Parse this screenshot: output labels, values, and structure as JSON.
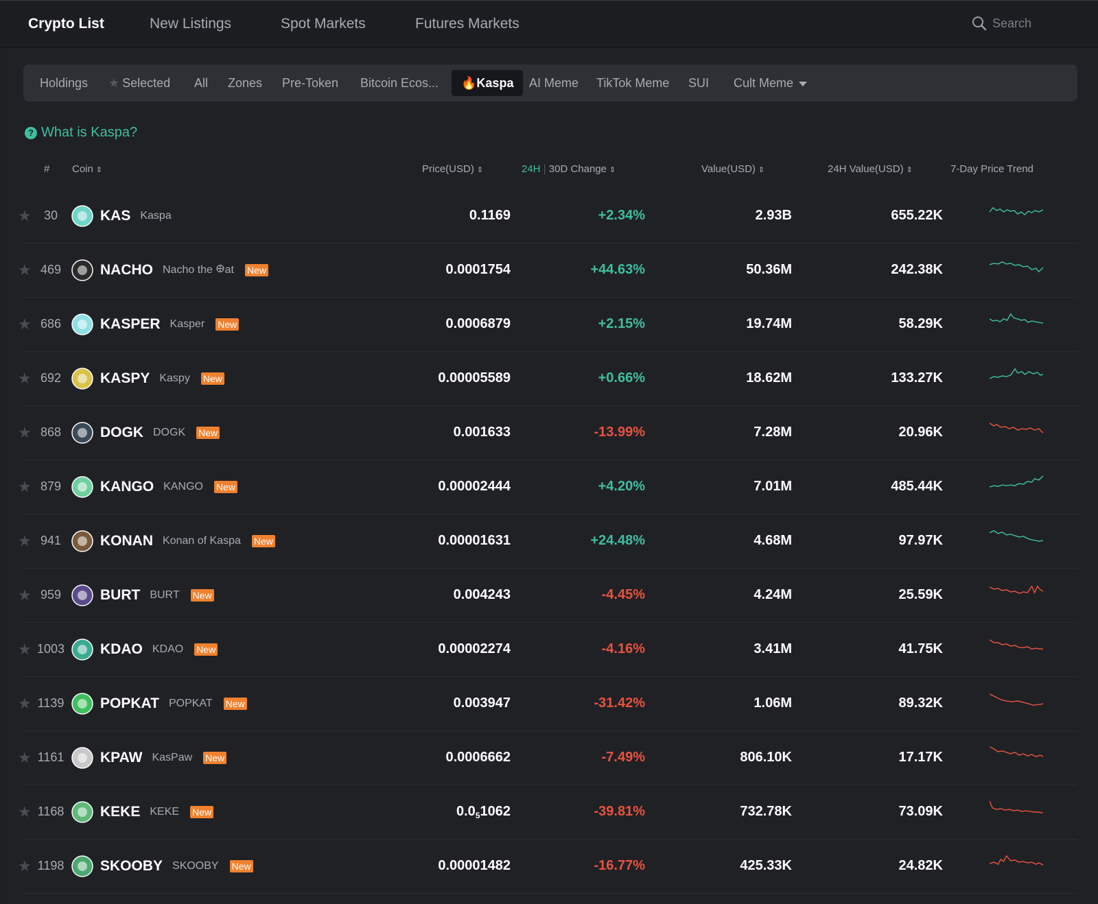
{
  "colors": {
    "up": "#3fbfa0",
    "down": "#e8533f",
    "badge": "#f0812f"
  },
  "top_tabs": [
    {
      "label": "Crypto List",
      "active": true
    },
    {
      "label": "New Listings",
      "active": false
    },
    {
      "label": "Spot Markets",
      "active": false
    },
    {
      "label": "Futures Markets",
      "active": false
    }
  ],
  "search": {
    "placeholder": "Search",
    "icon": "search-icon"
  },
  "filters": [
    {
      "label": "Holdings"
    },
    {
      "label": "Selected",
      "icon": "star-icon"
    },
    {
      "label": "All"
    },
    {
      "label": "Zones"
    },
    {
      "label": "Pre-Token"
    },
    {
      "label": "Bitcoin Ecos..."
    },
    {
      "label": "Kaspa",
      "icon": "fire-icon",
      "active": true
    },
    {
      "label": "AI Meme"
    },
    {
      "label": "TikTok Meme"
    },
    {
      "label": "SUI"
    },
    {
      "label": "Cult Meme",
      "icon": "chevron-down-icon"
    }
  ],
  "info_link": "What is Kaspa?",
  "columns": {
    "rank": "#",
    "coin": "Coin",
    "price": "Price(USD)",
    "change_24h": "24H",
    "change_sep": "|",
    "change_30d": "30D",
    "change_label": "Change",
    "value": "Value(USD)",
    "value_24h": "24H Value(USD)",
    "trend": "7-Day Price Trend"
  },
  "rows": [
    {
      "rank": "30",
      "symbol": "KAS",
      "name": "Kaspa",
      "new": "",
      "price": "0.1169",
      "change": "+2.34%",
      "dir": "up",
      "value": "2.93B",
      "value24": "655.22K"
    },
    {
      "rank": "469",
      "symbol": "NACHO",
      "name": "Nacho the 𐃏at",
      "new": "New",
      "price": "0.0001754",
      "change": "+44.63%",
      "dir": "up",
      "value": "50.36M",
      "value24": "242.38K"
    },
    {
      "rank": "686",
      "symbol": "KASPER",
      "name": "Kasper",
      "new": "New",
      "price": "0.0006879",
      "change": "+2.15%",
      "dir": "up",
      "value": "19.74M",
      "value24": "58.29K"
    },
    {
      "rank": "692",
      "symbol": "KASPY",
      "name": "Kaspy",
      "new": "New",
      "price": "0.00005589",
      "change": "+0.66%",
      "dir": "up",
      "value": "18.62M",
      "value24": "133.27K"
    },
    {
      "rank": "868",
      "symbol": "DOGK",
      "name": "DOGK",
      "new": "New",
      "price": "0.001633",
      "change": "-13.99%",
      "dir": "down",
      "value": "7.28M",
      "value24": "20.96K"
    },
    {
      "rank": "879",
      "symbol": "KANGO",
      "name": "KANGO",
      "new": "New",
      "price": "0.00002444",
      "change": "+4.20%",
      "dir": "up",
      "value": "7.01M",
      "value24": "485.44K"
    },
    {
      "rank": "941",
      "symbol": "KONAN",
      "name": "Konan of Kaspa",
      "new": "New",
      "price": "0.00001631",
      "change": "+24.48%",
      "dir": "up",
      "value": "4.68M",
      "value24": "97.97K"
    },
    {
      "rank": "959",
      "symbol": "BURT",
      "name": "BURT",
      "new": "New",
      "price": "0.004243",
      "change": "-4.45%",
      "dir": "down",
      "value": "4.24M",
      "value24": "25.59K"
    },
    {
      "rank": "1003",
      "symbol": "KDAO",
      "name": "KDAO",
      "new": "New",
      "price": "0.00002274",
      "change": "-4.16%",
      "dir": "down",
      "value": "3.41M",
      "value24": "41.75K"
    },
    {
      "rank": "1139",
      "symbol": "POPKAT",
      "name": "POPKAT",
      "new": "New",
      "price": "0.003947",
      "change": "-31.42%",
      "dir": "down",
      "value": "1.06M",
      "value24": "89.32K"
    },
    {
      "rank": "1161",
      "symbol": "KPAW",
      "name": "KasPaw",
      "new": "New",
      "price": "0.0006662",
      "change": "-7.49%",
      "dir": "down",
      "value": "806.10K",
      "value24": "17.17K"
    },
    {
      "rank": "1168",
      "symbol": "KEKE",
      "name": "KEKE",
      "new": "New",
      "price_main": "0.0",
      "price_sub": "5",
      "price_tail": "1062",
      "price": "",
      "change": "-39.81%",
      "dir": "down",
      "value": "732.78K",
      "value24": "73.09K"
    },
    {
      "rank": "1198",
      "symbol": "SKOOBY",
      "name": "SKOOBY",
      "new": "New",
      "price": "0.00001482",
      "change": "-16.77%",
      "dir": "down",
      "value": "425.33K",
      "value24": "24.82K"
    }
  ]
}
